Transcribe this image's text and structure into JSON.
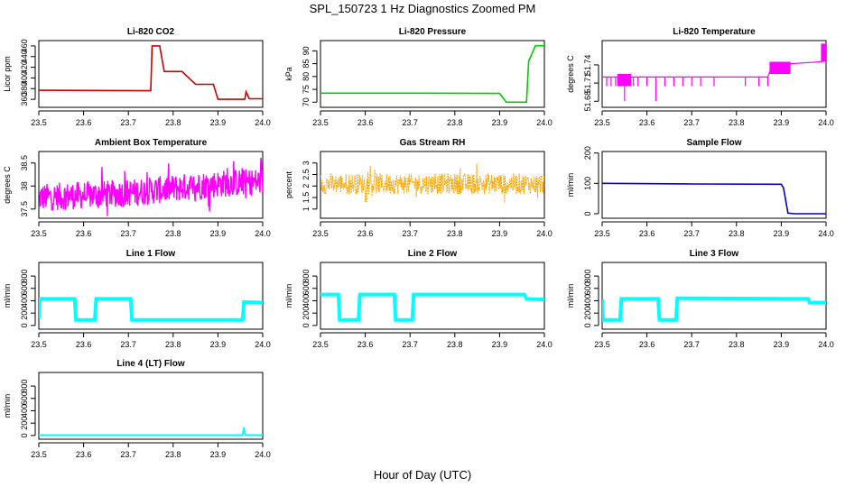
{
  "figure": {
    "title": "SPL_150723  1 Hz Diagnostics Zoomed PM",
    "xlabel": "Hour of Day (UTC)"
  },
  "chart_data": [
    {
      "type": "line",
      "title": "Li-820 CO2",
      "ylabel": "Licor ppm",
      "color": "#cc0000",
      "xlim": [
        23.5,
        24.0
      ],
      "ylim": [
        345,
        470
      ],
      "xticks": [
        "23.5",
        "23.6",
        "23.7",
        "23.8",
        "23.9",
        "24.0"
      ],
      "yticks": [
        360,
        380,
        400,
        420,
        440,
        460
      ],
      "series": [
        {
          "x": [
            23.5,
            23.75,
            23.753,
            23.77,
            23.78,
            23.8,
            23.82,
            23.85,
            23.86,
            23.89,
            23.9,
            23.92,
            23.96,
            23.963,
            23.97,
            24.0
          ],
          "y": [
            377,
            376,
            460,
            460,
            412,
            412,
            412,
            388,
            388,
            388,
            360,
            360,
            360,
            374,
            361,
            361
          ]
        }
      ]
    },
    {
      "type": "line",
      "title": "Li-820 Pressure",
      "ylabel": "kPa",
      "color": "#00cc00",
      "xlim": [
        23.5,
        24.0
      ],
      "ylim": [
        68,
        94
      ],
      "xticks": [
        "23.5",
        "23.6",
        "23.7",
        "23.8",
        "23.9",
        "24.0"
      ],
      "yticks": [
        70,
        75,
        80,
        85,
        90
      ],
      "series": [
        {
          "x": [
            23.5,
            23.7,
            23.9,
            23.915,
            23.96,
            23.965,
            23.98,
            24.0
          ],
          "y": [
            73.5,
            73.5,
            73.4,
            70,
            70,
            86,
            92,
            92
          ]
        }
      ]
    },
    {
      "type": "line",
      "title": "Li-820 Temperature",
      "ylabel": "degrees C",
      "color": "#ff00ff",
      "xlim": [
        23.5,
        24.0
      ],
      "ylim": [
        51.67,
        51.78
      ],
      "xticks": [
        "23.5",
        "23.6",
        "23.7",
        "23.8",
        "23.9",
        "24.0"
      ],
      "yticks": [
        51.68,
        51.71,
        51.74
      ],
      "series": [
        {
          "x": [
            23.5,
            23.55,
            23.56,
            23.87,
            23.88,
            23.99,
            24.0
          ],
          "y": [
            51.72,
            51.72,
            51.72,
            51.72,
            51.74,
            51.745,
            51.765
          ]
        }
      ]
    },
    {
      "type": "line",
      "title": "Ambient Box Temperature",
      "ylabel": "degrees C",
      "color": "#ff00ff",
      "xlim": [
        23.5,
        24.0
      ],
      "ylim": [
        37.3,
        38.75
      ],
      "xticks": [
        "23.5",
        "23.6",
        "23.7",
        "23.8",
        "23.9",
        "24.0"
      ],
      "yticks": [
        37.5,
        38.0,
        38.5
      ],
      "series": [
        {
          "x": [
            23.5,
            23.6,
            23.7,
            23.8,
            23.9,
            24.0
          ],
          "y": [
            37.75,
            37.8,
            37.85,
            37.95,
            38.05,
            38.1
          ]
        }
      ]
    },
    {
      "type": "line",
      "title": "Gas Stream RH",
      "ylabel": "percent",
      "color": "#ffa500",
      "xlim": [
        23.5,
        24.0
      ],
      "ylim": [
        0.6,
        3.5
      ],
      "xticks": [
        "23.5",
        "23.6",
        "23.7",
        "23.8",
        "23.9",
        "24.0"
      ],
      "yticks": [
        1.0,
        1.5,
        2.0,
        2.5,
        3.0
      ],
      "series": [
        {
          "x": [
            23.5,
            23.6,
            23.7,
            23.8,
            23.9,
            24.0
          ],
          "y": [
            2.1,
            2.1,
            2.1,
            2.1,
            2.1,
            2.1
          ]
        }
      ]
    },
    {
      "type": "line",
      "title": "Sample Flow",
      "ylabel": "ml/min",
      "color": "#0000cc",
      "xlim": [
        23.5,
        24.0
      ],
      "ylim": [
        -15,
        205
      ],
      "xticks": [
        "23.5",
        "23.6",
        "23.7",
        "23.8",
        "23.9",
        "24.0"
      ],
      "yticks": [
        0,
        100,
        200
      ],
      "series": [
        {
          "x": [
            23.5,
            23.7,
            23.9,
            23.905,
            23.915,
            23.93,
            24.0
          ],
          "y": [
            100,
            98,
            97,
            85,
            2,
            0,
            0
          ]
        }
      ]
    },
    {
      "type": "line",
      "title": "Line 1 Flow",
      "ylabel": "ml/min",
      "color": "#00ffff",
      "xlim": [
        23.5,
        24.0
      ],
      "ylim": [
        -60,
        1020
      ],
      "xticks": [
        "23.5",
        "23.6",
        "23.7",
        "23.8",
        "23.9",
        "24.0"
      ],
      "yticks": [
        0,
        200,
        400,
        600,
        800
      ],
      "series": [
        {
          "x": [
            23.5,
            23.502,
            23.58,
            23.583,
            23.625,
            23.628,
            23.705,
            23.708,
            23.955,
            23.958,
            24.0
          ],
          "y": [
            110,
            430,
            430,
            90,
            90,
            430,
            430,
            90,
            90,
            380,
            370
          ]
        }
      ]
    },
    {
      "type": "line",
      "title": "Line 2 Flow",
      "ylabel": "ml/min",
      "color": "#00ffff",
      "xlim": [
        23.5,
        24.0
      ],
      "ylim": [
        -60,
        1020
      ],
      "xticks": [
        "23.5",
        "23.6",
        "23.7",
        "23.8",
        "23.9",
        "24.0"
      ],
      "yticks": [
        0,
        200,
        400,
        600,
        800
      ],
      "series": [
        {
          "x": [
            23.5,
            23.54,
            23.543,
            23.585,
            23.588,
            23.665,
            23.668,
            23.705,
            23.708,
            23.955,
            23.96,
            24.0
          ],
          "y": [
            500,
            500,
            90,
            90,
            500,
            500,
            90,
            90,
            500,
            500,
            430,
            420
          ]
        }
      ]
    },
    {
      "type": "line",
      "title": "Line 3 Flow",
      "ylabel": "ml/min",
      "color": "#00ffff",
      "xlim": [
        23.5,
        24.0
      ],
      "ylim": [
        -60,
        1020
      ],
      "xticks": [
        "23.5",
        "23.6",
        "23.7",
        "23.8",
        "23.9",
        "24.0"
      ],
      "yticks": [
        0,
        200,
        400,
        600,
        800
      ],
      "series": [
        {
          "x": [
            23.5,
            23.502,
            23.54,
            23.543,
            23.625,
            23.628,
            23.665,
            23.668,
            23.96,
            23.963,
            24.0
          ],
          "y": [
            420,
            90,
            90,
            430,
            430,
            90,
            90,
            440,
            430,
            370,
            370
          ]
        }
      ]
    },
    {
      "type": "line",
      "title": "Line 4 (LT) Flow",
      "ylabel": "ml/min",
      "color": "#00ffff",
      "xlim": [
        23.5,
        24.0
      ],
      "ylim": [
        -60,
        1020
      ],
      "xticks": [
        "23.5",
        "23.6",
        "23.7",
        "23.8",
        "23.9",
        "24.0"
      ],
      "yticks": [
        0,
        200,
        400,
        600,
        800
      ],
      "series": [
        {
          "x": [
            23.5,
            23.955,
            23.958,
            23.961,
            24.0
          ],
          "y": [
            5,
            5,
            130,
            10,
            5
          ]
        }
      ]
    }
  ]
}
